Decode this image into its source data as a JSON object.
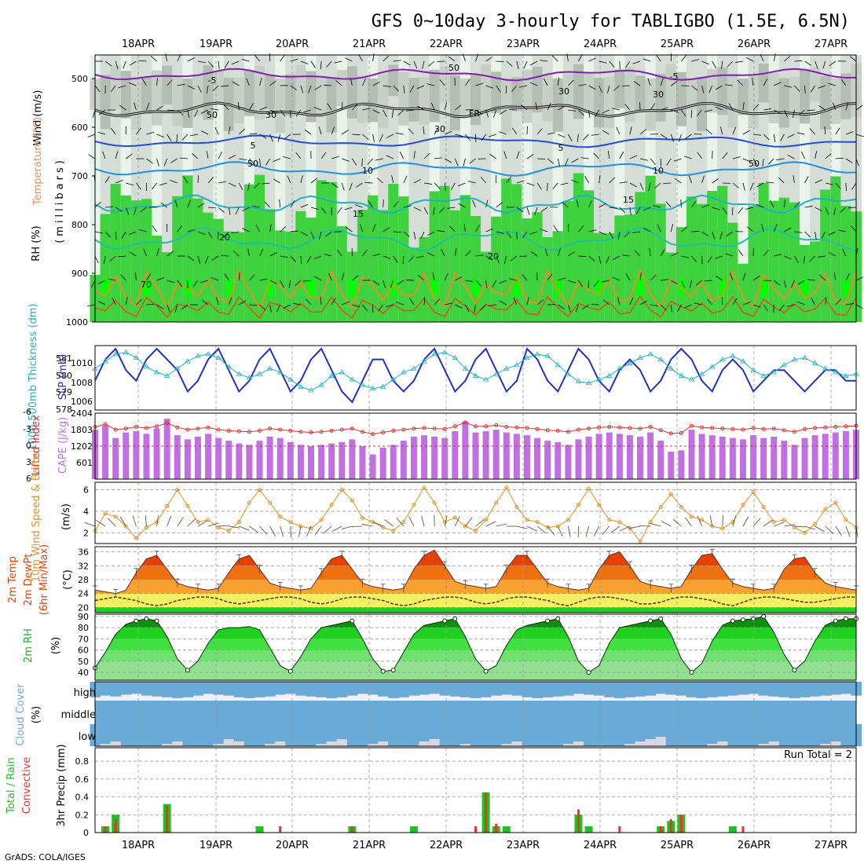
{
  "title": "GFS 0~10day 3-hourly for TABLIGBO (1.5E, 6.5N)",
  "footer": "GrADS: COLA/IGES",
  "dates": [
    "18APR",
    "19APR",
    "20APR",
    "21APR",
    "22APR",
    "23APR",
    "24APR",
    "25APR",
    "26APR",
    "27APR"
  ],
  "colors": {
    "rh_green": "#3fd23f",
    "rh_bright": "#00ff00",
    "rh_gray": "#b4bdb4",
    "slp": "#2030c8",
    "thick": "#20b0c0",
    "cape": "#c070e0",
    "li": "#d83030",
    "wind": "#e09020",
    "temp_hi": "#e84000",
    "temp_mid": "#f8a030",
    "temp_low": "#f0f060",
    "cloud": "#6aaad6",
    "precip_total": "#20c020",
    "precip_conv": "#f03030"
  },
  "panel1": {
    "ylabel_wind": "Wind (m/s)",
    "ylabel_temp": "Temperature (°C)",
    "ylabel_rh": "RH (%)",
    "ylabel_units": "(millibars)",
    "ticks": [
      "500",
      "600",
      "700",
      "800",
      "900",
      "1000"
    ],
    "contour_labels": [
      "-5",
      "-5",
      "FR",
      "5",
      "5",
      "10",
      "10",
      "15",
      "15",
      "20",
      "20",
      "30",
      "30",
      "50",
      "50",
      "70",
      "50",
      "30",
      "50",
      "30"
    ]
  },
  "panel2": {
    "ylabel_thick": "1000-500mb Thickness (dm)",
    "ylabel_slp": "SLP (mb)",
    "left_ticks": [
      "581",
      "580",
      "579",
      "578"
    ],
    "right_ticks": [
      "1010",
      "1008",
      "1006"
    ]
  },
  "panel3": {
    "ylabel_li": "Lifted Index",
    "ylabel_cape": "CAPE (J/kg)",
    "left_ticks": [
      "-6",
      "-3",
      "0",
      "3",
      "6"
    ],
    "right_ticks": [
      "2404",
      "1803",
      "1202",
      "601"
    ]
  },
  "panel4": {
    "ylabel_wind": "10m Wind Speed & Barbs",
    "ylabel_units": "(m/s)",
    "ticks": [
      "6",
      "4",
      "2"
    ]
  },
  "panel5": {
    "ylabel_temp": "2m Temp",
    "ylabel_dew": "2m DewPt",
    "ylabel_minmax": "(6hr Min/Max)",
    "ylabel_units": "(°C)",
    "ticks": [
      "36",
      "32",
      "28",
      "24",
      "20"
    ]
  },
  "panel6": {
    "ylabel": "2m RH",
    "ylabel_units": "(%)",
    "ticks": [
      "90",
      "80",
      "70",
      "60",
      "50",
      "40"
    ]
  },
  "panel7": {
    "ylabel": "Cloud Cover",
    "ylabel_units": "(%)",
    "levels": [
      "high",
      "middle",
      "low"
    ]
  },
  "panel8": {
    "ylabel_total": "Total / Rain",
    "ylabel_conv": "Convective",
    "ylabel_units": "3hr Precip (mm)",
    "ticks": [
      "0.8",
      "0.6",
      "0.4",
      "0.2",
      "0"
    ],
    "run_total": "Run Total = 2"
  },
  "chart_data": {
    "type": "meteogram",
    "time_range": [
      "18APR",
      "27APR"
    ],
    "step_hours": 3,
    "slp": [
      1008,
      1010,
      1011,
      1009,
      1008,
      1010,
      1011,
      1010,
      1009,
      1007,
      1008,
      1010,
      1011,
      1009,
      1007,
      1008,
      1010,
      1011,
      1009,
      1007,
      1008,
      1010,
      1011,
      1009,
      1007,
      1006,
      1008,
      1010,
      1010,
      1008,
      1007,
      1008,
      1010,
      1011,
      1009,
      1007,
      1008,
      1010,
      1011,
      1009,
      1007,
      1008,
      1011,
      1010,
      1008,
      1007,
      1009,
      1011,
      1010,
      1008,
      1007,
      1009,
      1010,
      1009,
      1007,
      1008,
      1010,
      1011,
      1010,
      1008,
      1007,
      1009,
      1010,
      1009,
      1007,
      1008,
      1009,
      1009,
      1008,
      1007,
      1008,
      1009,
      1009,
      1008,
      1008
    ],
    "thickness": [
      580.2,
      580.6,
      581.0,
      581.1,
      580.8,
      580.3,
      580.0,
      579.8,
      580.2,
      580.6,
      580.9,
      581.0,
      580.8,
      580.3,
      579.9,
      579.7,
      579.9,
      580.2,
      580.0,
      579.6,
      579.2,
      579.0,
      579.3,
      579.8,
      580.0,
      579.6,
      579.3,
      579.1,
      579.2,
      579.6,
      580.0,
      580.2,
      580.6,
      581.0,
      581.1,
      580.8,
      580.2,
      579.8,
      579.6,
      579.9,
      580.2,
      580.4,
      580.8,
      581.0,
      580.9,
      580.4,
      579.9,
      579.5,
      579.4,
      579.6,
      579.8,
      580.2,
      580.5,
      580.8,
      581.0,
      580.7,
      580.2,
      579.8,
      579.6,
      579.9,
      580.3,
      580.7,
      580.9,
      580.6,
      580.1,
      579.8,
      580.0,
      580.4,
      580.7,
      580.8,
      580.5,
      580.2,
      580.0,
      579.8,
      579.9
    ],
    "cape": [
      1800,
      1950,
      1500,
      1700,
      1750,
      1650,
      1850,
      2200,
      1600,
      1450,
      1550,
      1650,
      1500,
      1400,
      1300,
      1250,
      1400,
      1550,
      1500,
      1350,
      1250,
      1200,
      1250,
      1300,
      1350,
      1450,
      1200,
      900,
      1150,
      1250,
      1400,
      1550,
      1600,
      1550,
      1500,
      1750,
      2100,
      1700,
      1750,
      1800,
      1700,
      1650,
      1600,
      1500,
      1400,
      1350,
      1250,
      1450,
      1550,
      1650,
      1700,
      1650,
      1600,
      1550,
      1700,
      1400,
      1000,
      1050,
      1800,
      1650,
      1600,
      1550,
      1500,
      1450,
      1600,
      1500,
      1550,
      1400,
      1250,
      1500,
      1600,
      1650,
      1700,
      1750,
      1800
    ],
    "lifted_index": [
      -3.5,
      -4,
      -3,
      -3.2,
      -3.5,
      -3.3,
      -3.6,
      -4.2,
      -3.4,
      -3,
      -3.2,
      -3.4,
      -3,
      -2.8,
      -2.7,
      -2.6,
      -2.8,
      -3.2,
      -3,
      -2.8,
      -2.6,
      -2.5,
      -2.6,
      -2.8,
      -3,
      -3.2,
      -2.6,
      -2.2,
      -2.5,
      -2.8,
      -3,
      -3.2,
      -3.3,
      -3.2,
      -3.1,
      -3.6,
      -4.3,
      -3.6,
      -3.6,
      -3.8,
      -3.5,
      -3.4,
      -3.3,
      -3.1,
      -2.9,
      -2.8,
      -2.6,
      -3,
      -3.2,
      -3.4,
      -3.5,
      -3.4,
      -3.3,
      -3.2,
      -3.5,
      -2.9,
      -2.3,
      -2.4,
      -3.7,
      -3.4,
      -3.3,
      -3.2,
      -3.1,
      -3,
      -3.3,
      -3.1,
      -3.2,
      -2.9,
      -2.6,
      -3.1,
      -3.3,
      -3.4,
      -3.5,
      -3.6,
      -3.7
    ],
    "wind10m": [
      2.2,
      3.8,
      3.5,
      2.6,
      1.5,
      2.5,
      3.0,
      4.5,
      6.0,
      4.5,
      3.0,
      3.2,
      2.5,
      2.2,
      3.0,
      4.8,
      6.0,
      4.8,
      3.5,
      3.0,
      2.6,
      2.4,
      3.2,
      4.6,
      6.0,
      5.0,
      3.4,
      3.0,
      2.5,
      2.2,
      3.0,
      4.6,
      6.2,
      4.8,
      3.0,
      3.4,
      2.6,
      2.2,
      3.2,
      4.8,
      6.2,
      4.4,
      3.2,
      3.0,
      2.5,
      2.6,
      3.2,
      4.6,
      6.1,
      4.6,
      3.2,
      3.0,
      2.4,
      1.2,
      3.0,
      4.4,
      5.6,
      4.4,
      3.5,
      3.2,
      2.6,
      2.4,
      3.0,
      4.6,
      5.8,
      4.4,
      3.0,
      3.2,
      2.5,
      2.0,
      2.8,
      4.2,
      4.8,
      3.2,
      2.5
    ],
    "temp2m": [
      25,
      24.5,
      24,
      25,
      30,
      34,
      35,
      31,
      27,
      26,
      25.5,
      25,
      25.5,
      30,
      34,
      35,
      31,
      27,
      26,
      25.5,
      25,
      25.5,
      30,
      34,
      35,
      31,
      27,
      26,
      25.5,
      25,
      25.5,
      31,
      35,
      36.5,
      32,
      27.5,
      26.5,
      26,
      25.5,
      26,
      31,
      35,
      35,
      31,
      27,
      26,
      25.5,
      25,
      25.5,
      31,
      35,
      36,
      32,
      27.5,
      26.5,
      26,
      25.5,
      26,
      31,
      35,
      35.5,
      31,
      27,
      26,
      25.5,
      25,
      25.5,
      31,
      34,
      34.5,
      30,
      27,
      26,
      25.5,
      25
    ],
    "dewpt2m": [
      22,
      22.5,
      23,
      22.5,
      22,
      21,
      20.5,
      21,
      22,
      22.5,
      23,
      23,
      22.5,
      21.5,
      21,
      21.5,
      22,
      22.5,
      23,
      23,
      22.5,
      21.5,
      21,
      21.5,
      22.5,
      23,
      23,
      22.5,
      22,
      21,
      20.5,
      21,
      22,
      22.5,
      23,
      23,
      22.5,
      21.5,
      21,
      21.5,
      22.5,
      23,
      23,
      22.5,
      22,
      21,
      20.5,
      21.5,
      22.5,
      23,
      23,
      22.5,
      22,
      21,
      21,
      21.5,
      22.5,
      23,
      23,
      22.5,
      22,
      21,
      20.5,
      21.5,
      22.5,
      23,
      23,
      22.5,
      22,
      21.5,
      21.5,
      22,
      22.5,
      23,
      23
    ],
    "rh2m": [
      44,
      58,
      74,
      83,
      86,
      88,
      86,
      72,
      52,
      42,
      50,
      66,
      78,
      80,
      80,
      81,
      78,
      62,
      46,
      41,
      54,
      70,
      80,
      82,
      84,
      86,
      70,
      52,
      41,
      42,
      58,
      74,
      82,
      84,
      86,
      88,
      72,
      52,
      41,
      46,
      64,
      78,
      82,
      84,
      86,
      88,
      72,
      50,
      40,
      46,
      66,
      80,
      82,
      84,
      86,
      88,
      74,
      52,
      40,
      48,
      68,
      82,
      86,
      87,
      88,
      90,
      76,
      56,
      42,
      50,
      68,
      82,
      86,
      88,
      88
    ],
    "cloud_high": [
      90,
      80,
      85,
      75,
      70,
      80,
      85,
      90,
      95,
      90,
      80,
      70,
      75,
      80,
      90,
      95,
      90,
      85,
      75,
      70,
      80,
      85,
      90,
      95,
      90,
      80,
      70,
      75,
      85,
      95,
      90,
      80,
      75,
      70,
      80,
      85,
      90,
      95,
      90,
      80,
      75,
      80,
      90,
      95,
      90,
      85,
      80,
      70,
      75,
      80,
      90,
      95,
      90,
      85,
      80,
      70,
      75,
      80,
      90,
      95,
      90,
      85,
      80,
      75,
      70,
      80,
      85,
      90,
      95,
      90,
      85,
      80,
      75,
      70,
      80
    ],
    "cloud_low": [
      0,
      5,
      10,
      0,
      0,
      0,
      0,
      5,
      10,
      0,
      0,
      0,
      5,
      15,
      10,
      0,
      0,
      5,
      10,
      0,
      0,
      0,
      5,
      10,
      15,
      0,
      0,
      5,
      10,
      0,
      0,
      0,
      10,
      15,
      0,
      0,
      5,
      0,
      0,
      0,
      5,
      10,
      0,
      0,
      0,
      0,
      5,
      10,
      0,
      0,
      0,
      0,
      5,
      10,
      15,
      20,
      0,
      0,
      0,
      0,
      5,
      10,
      0,
      0,
      0,
      5,
      10,
      0,
      0,
      0,
      0,
      5,
      10,
      0,
      0
    ],
    "precip_total": [
      0,
      0.07,
      0.2,
      0,
      0,
      0,
      0,
      0.32,
      0,
      0,
      0,
      0,
      0,
      0,
      0,
      0,
      0.07,
      0,
      0,
      0,
      0,
      0,
      0,
      0,
      0,
      0.07,
      0,
      0,
      0,
      0,
      0,
      0.07,
      0,
      0,
      0,
      0,
      0,
      0,
      0.45,
      0.07,
      0.07,
      0,
      0,
      0,
      0,
      0,
      0,
      0.2,
      0.07,
      0,
      0,
      0,
      0,
      0,
      0,
      0.07,
      0.13,
      0.2,
      0,
      0,
      0,
      0,
      0.07,
      0,
      0,
      0,
      0,
      0,
      0,
      0,
      0,
      0,
      0,
      0,
      0
    ],
    "precip_conv": [
      0,
      0.07,
      0.15,
      0,
      0,
      0,
      0,
      0.3,
      0,
      0,
      0,
      0,
      0,
      0,
      0,
      0,
      0,
      0,
      0.07,
      0,
      0,
      0,
      0,
      0,
      0,
      0.07,
      0,
      0,
      0,
      0,
      0,
      0,
      0,
      0,
      0,
      0,
      0,
      0.07,
      0.45,
      0.1,
      0,
      0,
      0,
      0,
      0,
      0,
      0,
      0.26,
      0,
      0,
      0,
      0.07,
      0,
      0,
      0,
      0.07,
      0.15,
      0.2,
      0,
      0,
      0,
      0,
      0,
      0.07,
      0,
      0,
      0,
      0,
      0,
      0,
      0,
      0,
      0,
      0,
      0
    ]
  }
}
